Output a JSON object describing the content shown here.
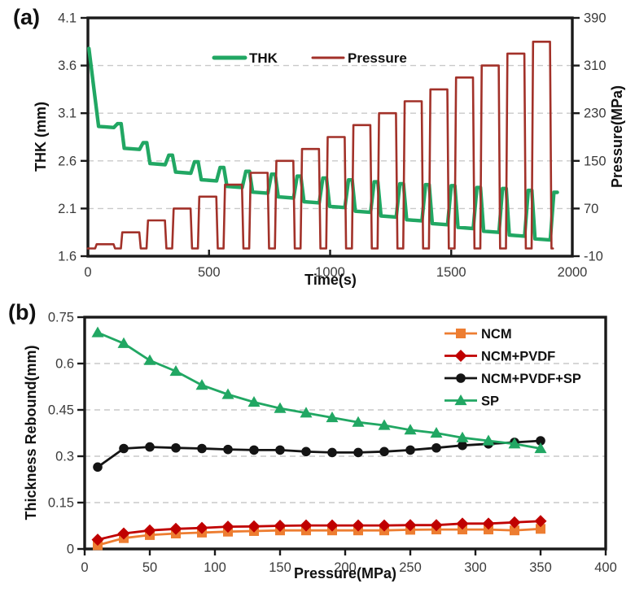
{
  "figure": {
    "background": "#ffffff",
    "grid_color": "#c9c9c9",
    "axis_color": "#1a1a1a",
    "tick_text_color": "#3b3b3b"
  },
  "chart_data": [
    {
      "panel_label": "(a)",
      "type": "line",
      "xlabel": "Time(s)",
      "x_range": [
        0,
        2000
      ],
      "x_ticks": [
        0,
        500,
        1000,
        1500,
        2000
      ],
      "y_left_label": "THK (mm)",
      "y_left_range": [
        1.6,
        4.1
      ],
      "y_left_ticks": [
        4.1,
        3.6,
        3.1,
        2.6,
        2.1,
        1.6
      ],
      "y_right_label": "Pressure(MPa)",
      "y_right_range": [
        -10,
        390
      ],
      "y_right_ticks": [
        390,
        310,
        230,
        150,
        70,
        -10
      ],
      "grid": "horizontal-dashed",
      "legend_position": "top-inside",
      "legend": [
        {
          "label": "THK",
          "color": "#21a763"
        },
        {
          "label": "Pressure",
          "color": "#a23129"
        }
      ],
      "series_model": {
        "description": "18 stepwise compression cycles: pressure pulses of increasing peak (right axis) with THK compression/rebound response (left axis)",
        "cycle_start_s": 30,
        "cycle_period_s": 106,
        "ramp_s": 6,
        "hold_s": 70,
        "end_s": 1938,
        "baseline_pressure_mpa": 3,
        "peak_pressure_mpa": [
          10,
          30,
          50,
          70,
          90,
          110,
          130,
          150,
          170,
          190,
          210,
          230,
          250,
          270,
          290,
          310,
          330,
          350
        ],
        "thk_initial_mm": 3.78,
        "thk_compressed_mm": [
          2.95,
          2.72,
          2.56,
          2.47,
          2.39,
          2.32,
          2.26,
          2.21,
          2.16,
          2.11,
          2.06,
          2.01,
          1.97,
          1.93,
          1.89,
          1.85,
          1.81,
          1.77
        ],
        "thk_released_mm": [
          2.99,
          2.79,
          2.66,
          2.59,
          2.53,
          2.49,
          2.46,
          2.44,
          2.42,
          2.4,
          2.38,
          2.36,
          2.35,
          2.34,
          2.32,
          2.31,
          2.29,
          2.27
        ]
      }
    },
    {
      "panel_label": "(b)",
      "type": "line",
      "markers": true,
      "xlabel": "Pressure(MPa)",
      "ylabel": "Thickness Rebound(mm)",
      "x_range": [
        0,
        400
      ],
      "x_ticks": [
        0,
        50,
        100,
        150,
        200,
        250,
        300,
        350,
        400
      ],
      "y_range": [
        0,
        0.75
      ],
      "y_ticks": [
        0.75,
        0.6,
        0.45,
        0.3,
        0.15,
        0
      ],
      "grid": "horizontal-dashed",
      "legend_position": "top-right-inside",
      "x": [
        10,
        30,
        50,
        70,
        90,
        110,
        130,
        150,
        170,
        190,
        210,
        230,
        250,
        270,
        290,
        310,
        330,
        350
      ],
      "series": [
        {
          "name": "NCM",
          "marker": "square",
          "color": "#ed7d31",
          "values": [
            0.012,
            0.035,
            0.045,
            0.05,
            0.053,
            0.056,
            0.058,
            0.06,
            0.06,
            0.06,
            0.06,
            0.06,
            0.062,
            0.063,
            0.063,
            0.063,
            0.06,
            0.065
          ]
        },
        {
          "name": "NCM+PVDF",
          "marker": "diamond",
          "color": "#c00000",
          "values": [
            0.03,
            0.05,
            0.06,
            0.065,
            0.068,
            0.072,
            0.073,
            0.075,
            0.076,
            0.076,
            0.076,
            0.076,
            0.077,
            0.077,
            0.082,
            0.082,
            0.086,
            0.09
          ]
        },
        {
          "name": "NCM+PVDF+SP",
          "marker": "circle",
          "color": "#141414",
          "values": [
            0.265,
            0.325,
            0.33,
            0.327,
            0.325,
            0.322,
            0.32,
            0.32,
            0.315,
            0.312,
            0.312,
            0.315,
            0.32,
            0.327,
            0.335,
            0.34,
            0.345,
            0.35
          ]
        },
        {
          "name": "SP",
          "marker": "triangle",
          "color": "#21a763",
          "values": [
            0.7,
            0.665,
            0.61,
            0.575,
            0.53,
            0.5,
            0.475,
            0.455,
            0.44,
            0.425,
            0.41,
            0.4,
            0.385,
            0.375,
            0.36,
            0.35,
            0.34,
            0.325
          ]
        }
      ]
    }
  ]
}
